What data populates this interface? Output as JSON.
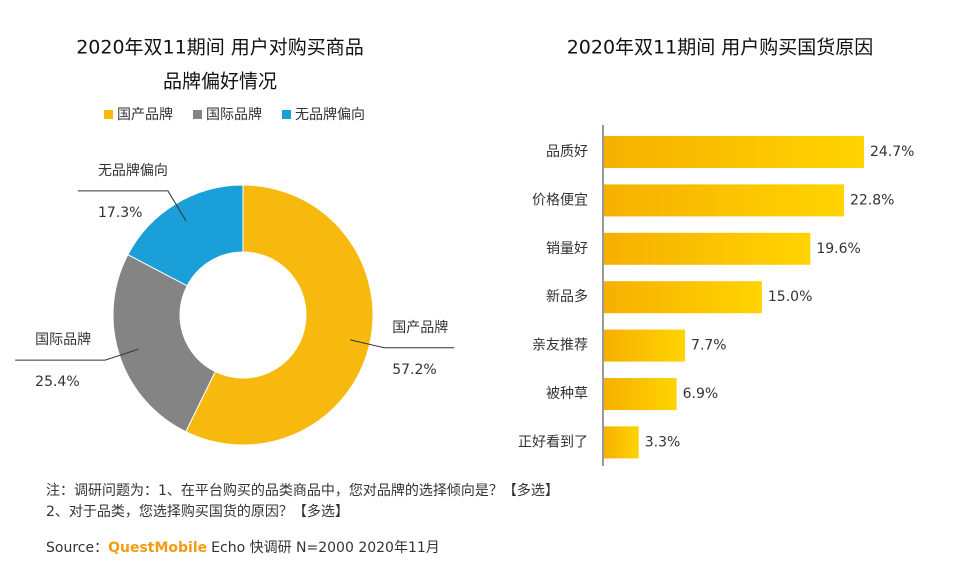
{
  "chart_data": [
    {
      "type": "pie",
      "title": [
        "2020年双11期间 用户对购买商品",
        "品牌偏好情况"
      ],
      "categories": [
        "国产品牌",
        "国际品牌",
        "无品牌偏向"
      ],
      "values": [
        57.2,
        25.4,
        17.3
      ],
      "value_labels": [
        "57.2%",
        "25.4%",
        "17.3%"
      ],
      "colors": [
        "#f8b90f",
        "#848484",
        "#1b9fd8"
      ],
      "legend": "top"
    },
    {
      "type": "hbar",
      "title": "2020年双11期间 用户购买国货原因",
      "categories": [
        "品质好",
        "价格便宜",
        "销量好",
        "新品多",
        "亲友推荐",
        "被种草",
        "正好看到了"
      ],
      "values": [
        24.7,
        22.8,
        19.6,
        15.0,
        7.7,
        6.9,
        3.3
      ],
      "value_labels": [
        "24.7%",
        "22.8%",
        "19.6%",
        "15.0%",
        "7.7%",
        "6.9%",
        "3.3%"
      ],
      "color": "#f8b90f"
    }
  ],
  "notes": [
    "注：调研问题为：1、在平台购买的品类商品中，您对品牌的选择倾向是？【多选】",
    "2、对于品类，您选择购买国货的原因？【多选】"
  ],
  "source": {
    "prefix": "Source：",
    "brand": "QuestMobile",
    "rest": "Echo 快调研 N=2000 2020年11月"
  }
}
